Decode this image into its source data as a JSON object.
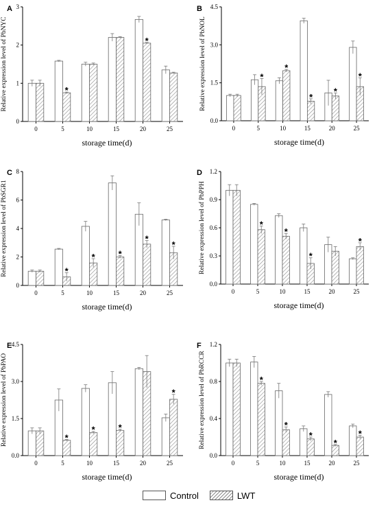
{
  "legend": {
    "control": "Control",
    "lwt": "LWT"
  },
  "chart_data": [
    {
      "panel": "A",
      "type": "bar",
      "categories": [
        "0",
        "5",
        "10",
        "15",
        "20",
        "25"
      ],
      "xlabel": "storage time(d)",
      "ylabel": "Relative expression level of PbNYC",
      "ylim": [
        0,
        3
      ],
      "yticks": [
        "0",
        "1",
        "2",
        "3"
      ],
      "series": [
        {
          "name": "Control",
          "values": [
            1.0,
            1.58,
            1.5,
            2.2,
            2.67,
            1.35
          ],
          "errors": [
            0.08,
            0.02,
            0.05,
            0.1,
            0.08,
            0.1
          ]
        },
        {
          "name": "LWT",
          "values": [
            1.0,
            0.75,
            1.5,
            2.2,
            2.05,
            1.27
          ],
          "errors": [
            0.08,
            0.02,
            0.03,
            0.02,
            0.02,
            0.02
          ]
        }
      ],
      "significant_lwt": [
        false,
        true,
        false,
        false,
        true,
        false
      ]
    },
    {
      "panel": "B",
      "type": "bar",
      "categories": [
        "0",
        "5",
        "10",
        "15",
        "20",
        "25"
      ],
      "xlabel": "storage time(d)",
      "ylabel": "Relative expression level of PbNOL",
      "ylim": [
        0,
        4.5
      ],
      "yticks": [
        "0.0",
        "1.5",
        "3.0",
        "4.5"
      ],
      "series": [
        {
          "name": "Control",
          "values": [
            1.0,
            1.62,
            1.58,
            3.95,
            1.1,
            2.9
          ],
          "errors": [
            0.05,
            0.2,
            0.12,
            0.1,
            0.5,
            0.25
          ]
        },
        {
          "name": "LWT",
          "values": [
            1.0,
            1.35,
            1.98,
            0.77,
            0.98,
            1.35
          ],
          "errors": [
            0.05,
            0.32,
            0.05,
            0.1,
            0.12,
            0.35
          ]
        }
      ],
      "significant_lwt": [
        false,
        true,
        true,
        true,
        true,
        true
      ]
    },
    {
      "panel": "C",
      "type": "bar",
      "categories": [
        "0",
        "5",
        "10",
        "15",
        "20",
        "25"
      ],
      "xlabel": "storage time(d)",
      "ylabel": "Relative expression level of PbSGR1",
      "ylim": [
        0,
        8
      ],
      "yticks": [
        "0",
        "2",
        "4",
        "6",
        "8"
      ],
      "series": [
        {
          "name": "Control",
          "values": [
            1.0,
            2.55,
            4.15,
            7.2,
            5.0,
            4.6
          ],
          "errors": [
            0.08,
            0.05,
            0.35,
            0.5,
            0.8,
            0.05
          ]
        },
        {
          "name": "LWT",
          "values": [
            1.0,
            0.6,
            1.58,
            2.0,
            2.9,
            2.3
          ],
          "errors": [
            0.08,
            0.3,
            0.3,
            0.1,
            0.25,
            0.45
          ]
        }
      ],
      "significant_lwt": [
        false,
        true,
        true,
        true,
        true,
        true
      ]
    },
    {
      "panel": "D",
      "type": "bar",
      "categories": [
        "0",
        "5",
        "10",
        "15",
        "20",
        "25"
      ],
      "xlabel": "storage time(d)",
      "ylabel": "Relative expression level of PbPPH",
      "ylim": [
        0,
        1.2
      ],
      "yticks": [
        "0.0",
        "0.3",
        "0.6",
        "0.9",
        "1.2"
      ],
      "series": [
        {
          "name": "Control",
          "values": [
            1.0,
            0.85,
            0.73,
            0.6,
            0.42,
            0.27
          ],
          "errors": [
            0.06,
            0.01,
            0.02,
            0.04,
            0.08,
            0.01
          ]
        },
        {
          "name": "LWT",
          "values": [
            1.0,
            0.58,
            0.51,
            0.22,
            0.35,
            0.4
          ],
          "errors": [
            0.06,
            0.04,
            0.03,
            0.06,
            0.05,
            0.04
          ]
        }
      ],
      "significant_lwt": [
        false,
        true,
        true,
        true,
        false,
        true
      ]
    },
    {
      "panel": "E",
      "type": "bar",
      "categories": [
        "0",
        "5",
        "10",
        "15",
        "20",
        "25"
      ],
      "xlabel": "storage time(d)",
      "ylabel": "Relative expression level of PbPAO",
      "ylim": [
        0,
        4.5
      ],
      "yticks": [
        "0.0",
        "1.5",
        "3.0",
        "4.5"
      ],
      "series": [
        {
          "name": "Control",
          "values": [
            1.0,
            2.25,
            2.72,
            2.95,
            3.52,
            1.53
          ],
          "errors": [
            0.12,
            0.45,
            0.15,
            0.45,
            0.05,
            0.15
          ]
        },
        {
          "name": "LWT",
          "values": [
            1.0,
            0.62,
            0.93,
            1.02,
            3.4,
            2.28
          ],
          "errors": [
            0.12,
            0.03,
            0.05,
            0.05,
            0.65,
            0.2
          ]
        }
      ],
      "significant_lwt": [
        false,
        true,
        true,
        true,
        false,
        true
      ]
    },
    {
      "panel": "F",
      "type": "bar",
      "categories": [
        "0",
        "5",
        "10",
        "15",
        "20",
        "25"
      ],
      "xlabel": "storage time(d)",
      "ylabel": "Relative expression level of PbRCCR",
      "ylim": [
        0,
        1.2
      ],
      "yticks": [
        "0.0",
        "0.4",
        "0.8",
        "1.2"
      ],
      "series": [
        {
          "name": "Control",
          "values": [
            1.0,
            1.01,
            0.7,
            0.29,
            0.66,
            0.32
          ],
          "errors": [
            0.04,
            0.06,
            0.08,
            0.03,
            0.03,
            0.02
          ]
        },
        {
          "name": "LWT",
          "values": [
            1.0,
            0.78,
            0.28,
            0.18,
            0.11,
            0.2
          ],
          "errors": [
            0.04,
            0.02,
            0.03,
            0.02,
            0.01,
            0.02
          ]
        }
      ],
      "significant_lwt": [
        false,
        true,
        true,
        true,
        true,
        true
      ]
    }
  ]
}
